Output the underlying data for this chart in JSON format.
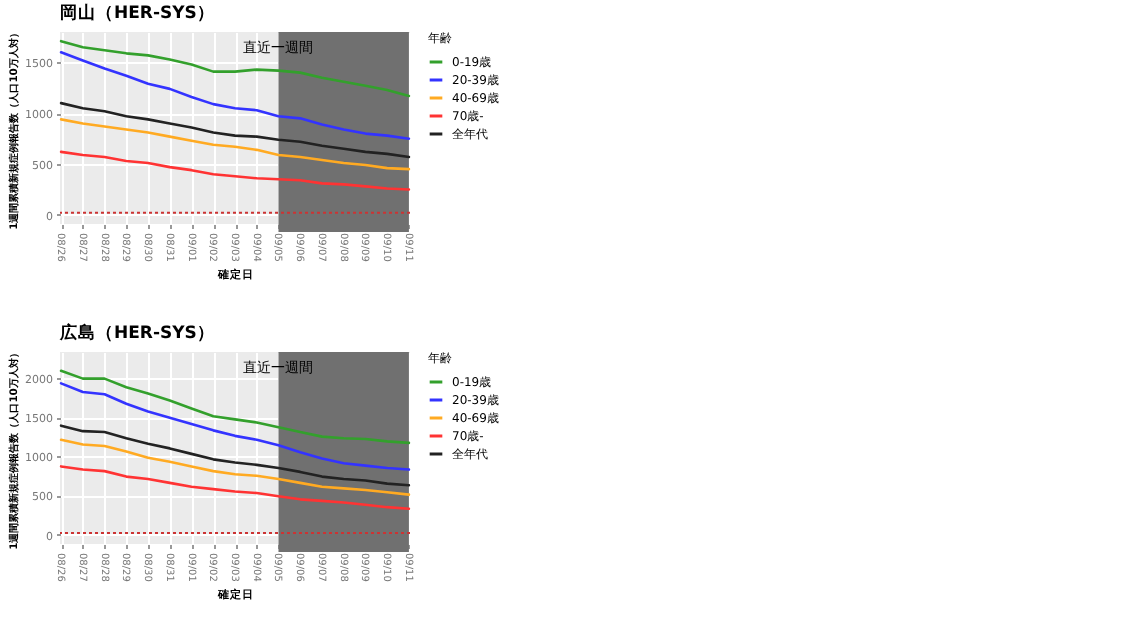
{
  "chart_data": [
    {
      "type": "line",
      "title": "岡山（HER-SYS）",
      "xlabel": "確定日",
      "ylabel": "1週間累積新規症例報告数（人口10万人対）",
      "legend_title": "年齢",
      "legend": "right",
      "grid": true,
      "categories": [
        "08/26",
        "08/27",
        "08/28",
        "08/29",
        "08/30",
        "08/31",
        "09/01",
        "09/02",
        "09/03",
        "09/04",
        "09/05",
        "09/06",
        "09/07",
        "09/08",
        "09/09",
        "09/10",
        "09/11"
      ],
      "ylim": [
        -90,
        1800
      ],
      "yticks": [
        0,
        500,
        1000,
        1500
      ],
      "series": [
        {
          "name": "0-19歳",
          "color": "#33a02c",
          "values": [
            1710,
            1650,
            1620,
            1590,
            1570,
            1530,
            1480,
            1410,
            1410,
            1430,
            1420,
            1400,
            1350,
            1310,
            1270,
            1230,
            1170
          ]
        },
        {
          "name": "20-39歳",
          "color": "#3333ff",
          "values": [
            1600,
            1520,
            1440,
            1370,
            1290,
            1240,
            1160,
            1090,
            1050,
            1030,
            970,
            950,
            890,
            840,
            800,
            780,
            750
          ]
        },
        {
          "name": "40-69歳",
          "color": "#ffaa22",
          "values": [
            940,
            900,
            870,
            840,
            810,
            770,
            730,
            690,
            670,
            640,
            590,
            570,
            540,
            510,
            490,
            460,
            450
          ]
        },
        {
          "name": "70歳-",
          "color": "#ff3333",
          "values": [
            620,
            590,
            570,
            530,
            510,
            470,
            440,
            400,
            380,
            360,
            350,
            340,
            310,
            300,
            280,
            260,
            250
          ]
        },
        {
          "name": "全年代",
          "color": "#222222",
          "values": [
            1100,
            1050,
            1020,
            970,
            940,
            900,
            860,
            810,
            780,
            770,
            740,
            720,
            680,
            650,
            620,
            600,
            570
          ]
        }
      ],
      "bands": [
        {
          "axis": "x",
          "from": "09/05",
          "to": "09/11",
          "label": "直近一週間",
          "color": "#707070"
        }
      ],
      "ref_lines": [
        {
          "axis": "y",
          "value": 20,
          "color": "#cc3333",
          "line_style": "dotted"
        }
      ]
    },
    {
      "type": "line",
      "title": "広島（HER-SYS）",
      "xlabel": "確定日",
      "ylabel": "1週間累積新規症例報告数（人口10万人対）",
      "legend_title": "年齢",
      "legend": "right",
      "grid": true,
      "categories": [
        "08/26",
        "08/27",
        "08/28",
        "08/29",
        "08/30",
        "08/31",
        "09/01",
        "09/02",
        "09/03",
        "09/04",
        "09/05",
        "09/06",
        "09/07",
        "09/08",
        "09/09",
        "09/10",
        "09/11"
      ],
      "ylim": [
        -120,
        2330
      ],
      "yticks": [
        0,
        500,
        1000,
        1500,
        2000
      ],
      "series": [
        {
          "name": "0-19歳",
          "color": "#33a02c",
          "values": [
            2090,
            1990,
            1990,
            1880,
            1800,
            1710,
            1610,
            1510,
            1470,
            1430,
            1370,
            1310,
            1250,
            1230,
            1220,
            1190,
            1170
          ]
        },
        {
          "name": "20-39歳",
          "color": "#3333ff",
          "values": [
            1930,
            1820,
            1790,
            1670,
            1570,
            1490,
            1410,
            1330,
            1260,
            1210,
            1140,
            1050,
            970,
            910,
            880,
            850,
            830
          ]
        },
        {
          "name": "40-69歳",
          "color": "#ffaa22",
          "values": [
            1210,
            1150,
            1130,
            1060,
            980,
            930,
            870,
            810,
            770,
            750,
            710,
            660,
            610,
            590,
            570,
            540,
            510
          ]
        },
        {
          "name": "70歳-",
          "color": "#ff3333",
          "values": [
            870,
            830,
            810,
            740,
            710,
            660,
            610,
            580,
            550,
            530,
            490,
            450,
            430,
            410,
            380,
            350,
            330
          ]
        },
        {
          "name": "全年代",
          "color": "#222222",
          "values": [
            1390,
            1320,
            1310,
            1230,
            1160,
            1100,
            1030,
            960,
            920,
            890,
            850,
            800,
            740,
            710,
            690,
            650,
            630
          ]
        }
      ],
      "bands": [
        {
          "axis": "x",
          "from": "09/05",
          "to": "09/11",
          "label": "直近一週間",
          "color": "#707070"
        }
      ],
      "ref_lines": [
        {
          "axis": "y",
          "value": 20,
          "color": "#cc3333",
          "line_style": "dotted"
        }
      ]
    }
  ]
}
